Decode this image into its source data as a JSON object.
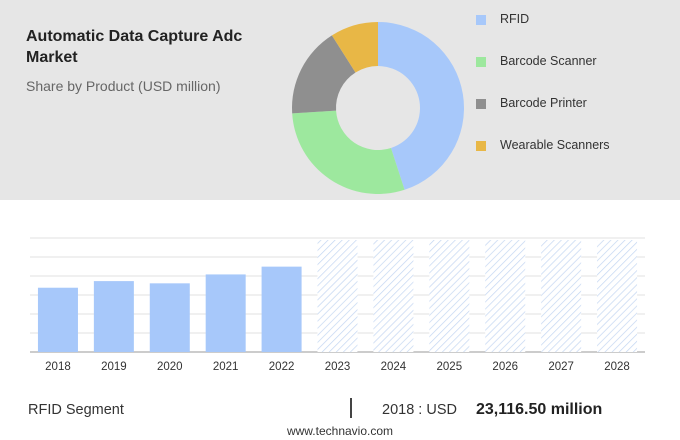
{
  "header": {
    "title": "Automatic Data Capture Adc Market",
    "subtitle": "Share by Product (USD million)"
  },
  "chart_data": [
    {
      "type": "pie",
      "variant": "donut",
      "series": [
        {
          "name": "RFID",
          "value": 45,
          "color": "#a7c8fa"
        },
        {
          "name": "Barcode Scanner",
          "value": 29,
          "color": "#9de89e"
        },
        {
          "name": "Barcode Printer",
          "value": 17,
          "color": "#8f8f8f"
        },
        {
          "name": "Wearable Scanners",
          "value": 9,
          "color": "#e8b746"
        }
      ],
      "legend": "right"
    },
    {
      "type": "bar",
      "categories": [
        "2018",
        "2019",
        "2020",
        "2021",
        "2022",
        "2023",
        "2024",
        "2025",
        "2026",
        "2027",
        "2028"
      ],
      "values": [
        23116.5,
        25500,
        24700,
        27900,
        30700,
        null,
        null,
        null,
        null,
        null,
        null
      ],
      "forecast_categories": [
        "2023",
        "2024",
        "2025",
        "2026",
        "2027",
        "2028"
      ],
      "ylim": [
        0,
        41000
      ],
      "grid": true,
      "bar_color": "#a7c8fa"
    }
  ],
  "footer": {
    "segment": "RFID Segment",
    "year_label": "2018 : USD",
    "value": "23,116.50 million",
    "url": "www.technavio.com"
  }
}
